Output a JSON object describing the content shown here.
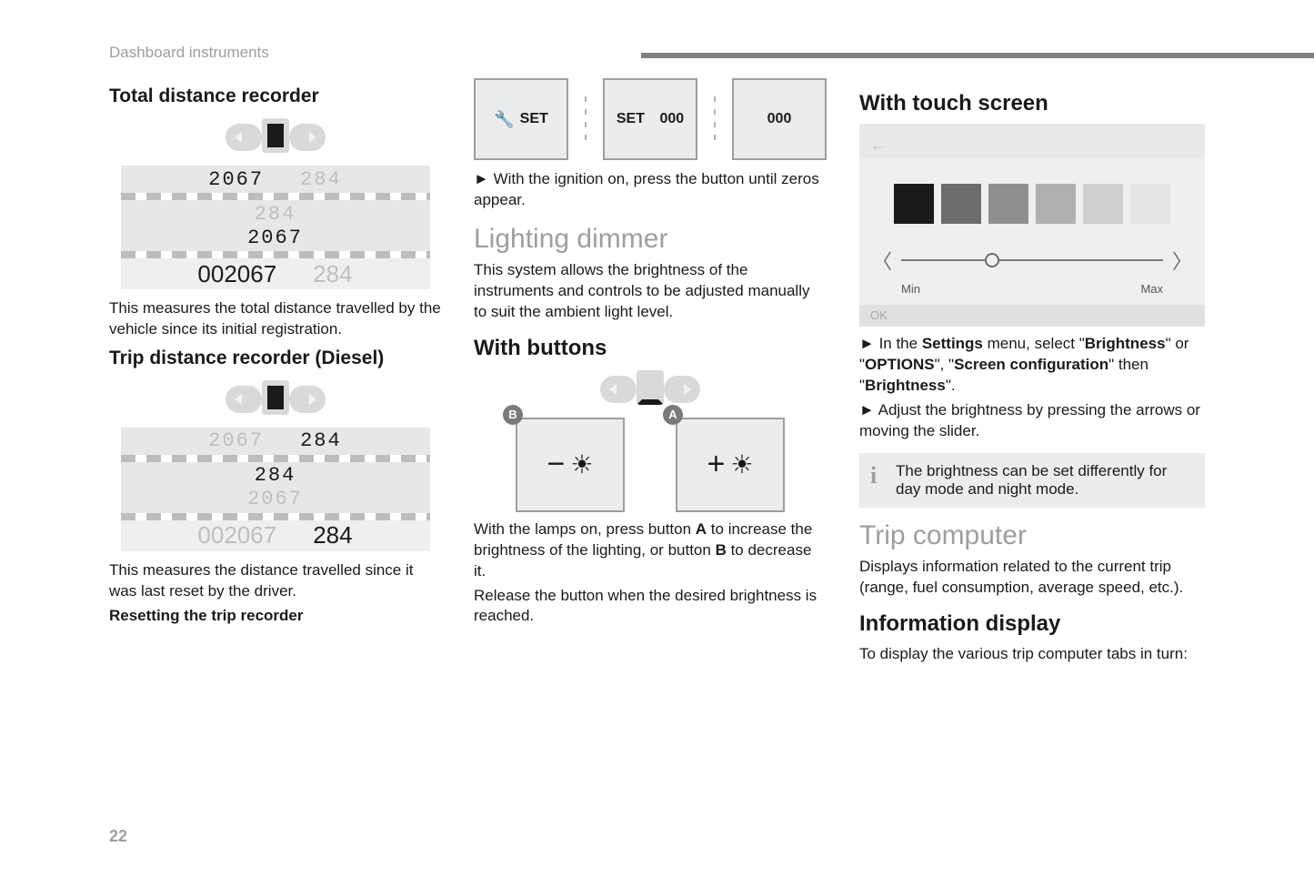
{
  "chapter": "Dashboard instruments",
  "page_number": "22",
  "col1": {
    "h_total": "Total distance recorder",
    "odo_total": {
      "r1a": "2067",
      "r1b": "284",
      "r2a": "284",
      "r2b": "2067",
      "r3a": "002067",
      "r3b": "284"
    },
    "p_total": "This measures the total distance travelled by the vehicle since its initial registration.",
    "h_trip": "Trip distance recorder (Diesel)",
    "odo_trip": {
      "r1a": "2067",
      "r1b": "284",
      "r2a": "284",
      "r2b": "2067",
      "r3a": "002067",
      "r3b": "284"
    },
    "p_trip": "This measures the distance travelled since it was last reset by the driver.",
    "p_reset": "Resetting the trip recorder"
  },
  "col2": {
    "btn1": "SET",
    "btn2a": "SET",
    "btn2b": "000",
    "btn3": "000",
    "p_set": "With the ignition on, press the button until zeros appear.",
    "h_dimmer": "Lighting dimmer",
    "p_dimmer": "This system allows the brightness of the instruments and controls to be adjusted manually to suit the ambient light level.",
    "h_buttons": "With buttons",
    "badge_a": "A",
    "badge_b": "B",
    "p_buttons1_a": "With the lamps on, press button ",
    "p_buttons1_b": " to increase the brightness of the lighting, or button ",
    "p_buttons1_c": " to decrease it.",
    "p_buttons2": "Release the button when the desired brightness is reached."
  },
  "col3": {
    "h_touch": "With touch screen",
    "touch": {
      "back": "←",
      "swatch_colors": [
        "#1a1a1a",
        "#6d6d6d",
        "#8f8f8f",
        "#b0b0b0",
        "#cfcfcf",
        "#e4e4e4"
      ],
      "min": "Min",
      "max": "Max",
      "ok": "OK"
    },
    "step1_a": "In the ",
    "step1_b": "Settings",
    "step1_c": " menu, select \"",
    "step1_d": "Brightness",
    "step1_e": "\" or \"",
    "step1_f": "OPTIONS",
    "step1_g": "\", \"",
    "step1_h": "Screen configuration",
    "step1_i": "\" then \"",
    "step1_j": "Brightness",
    "step1_k": "\".",
    "step2": "Adjust the brightness by pressing the arrows or moving the slider.",
    "info": "The brightness can be set differently for day mode and night mode.",
    "h_tripcomp": "Trip computer",
    "p_tripcomp": "Displays information related to the current trip (range, fuel consumption, average speed, etc.).",
    "h_infodisp": "Information display",
    "p_infodisp": "To display the various trip computer tabs in turn:"
  }
}
